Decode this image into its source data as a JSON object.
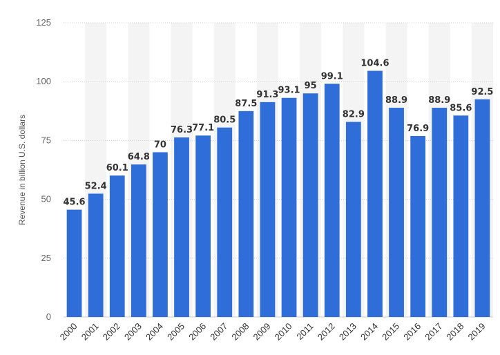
{
  "chart_data": {
    "type": "bar",
    "title": "",
    "xlabel": "",
    "ylabel": "Revenue in billion U.S. dollars",
    "ylim": [
      0,
      125
    ],
    "yticks": [
      0,
      25,
      50,
      75,
      100,
      125
    ],
    "grid": true,
    "categories": [
      "2000",
      "2001",
      "2002",
      "2003",
      "2004",
      "2005",
      "2006",
      "2007",
      "2008",
      "2009",
      "2010",
      "2011",
      "2012",
      "2013",
      "2014",
      "2015",
      "2016",
      "2017",
      "2018",
      "2019"
    ],
    "values": [
      45.6,
      52.4,
      60.1,
      64.8,
      70,
      76.3,
      77.1,
      80.5,
      87.5,
      91.3,
      93.1,
      95,
      99.1,
      82.9,
      104.6,
      88.9,
      76.9,
      88.9,
      85.6,
      92.5
    ],
    "data_labels": [
      "45.6",
      "52.4",
      "60.1",
      "64.8",
      "70",
      "76.3",
      "77.1",
      "80.5",
      "87.5",
      "91.3",
      "93.1",
      "95",
      "99.1",
      "82.9",
      "104.6",
      "88.9",
      "76.9",
      "88.9",
      "85.6",
      "92.5"
    ],
    "colors": {
      "bar": "#2f6ed8",
      "grid": "#cccccc",
      "band": "#f4f4f4"
    }
  }
}
